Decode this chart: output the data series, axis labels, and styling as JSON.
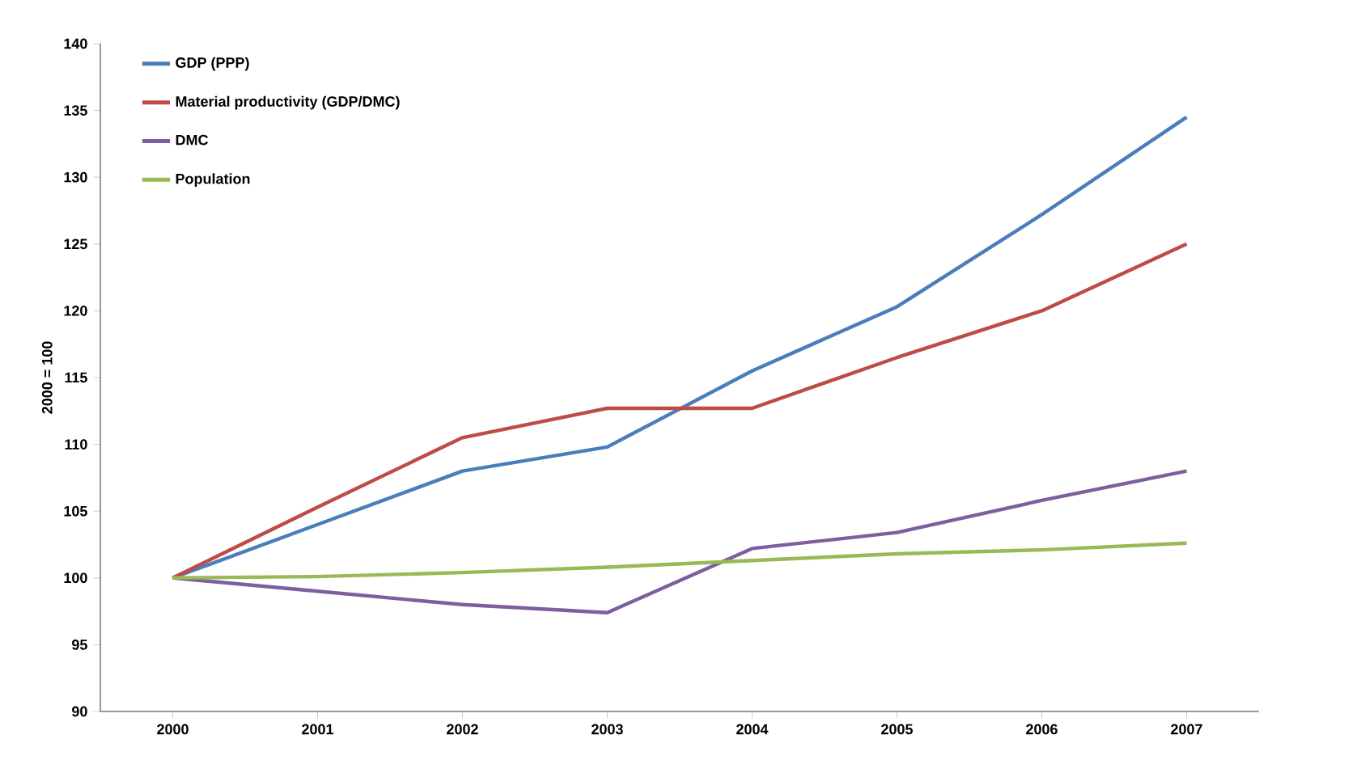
{
  "chart_data": {
    "type": "line",
    "ylabel": "2000 = 100",
    "categories": [
      "2000",
      "2001",
      "2002",
      "2003",
      "2004",
      "2005",
      "2006",
      "2007"
    ],
    "ylim": [
      90,
      140
    ],
    "yticks": [
      90,
      95,
      100,
      105,
      110,
      115,
      120,
      125,
      130,
      135,
      140
    ],
    "legend": "top left",
    "marker": "none",
    "line_style": "solid",
    "series": [
      {
        "name": "GDP (PPP)",
        "color": "#4a7ebb",
        "values": [
          100,
          104,
          108,
          109.8,
          115.5,
          120.3,
          127.2,
          134.5
        ]
      },
      {
        "name": "Material productivity (GDP/DMC)",
        "color": "#be4b48",
        "values": [
          100,
          105.3,
          110.5,
          112.7,
          112.7,
          116.5,
          120,
          125
        ]
      },
      {
        "name": "DMC",
        "color": "#7d5fa0",
        "values": [
          100,
          99,
          98,
          97.4,
          102.2,
          103.4,
          105.8,
          108
        ]
      },
      {
        "name": "Population",
        "color": "#98b954",
        "values": [
          100,
          100.1,
          100.4,
          100.8,
          101.3,
          101.8,
          102.1,
          102.6
        ]
      }
    ]
  }
}
